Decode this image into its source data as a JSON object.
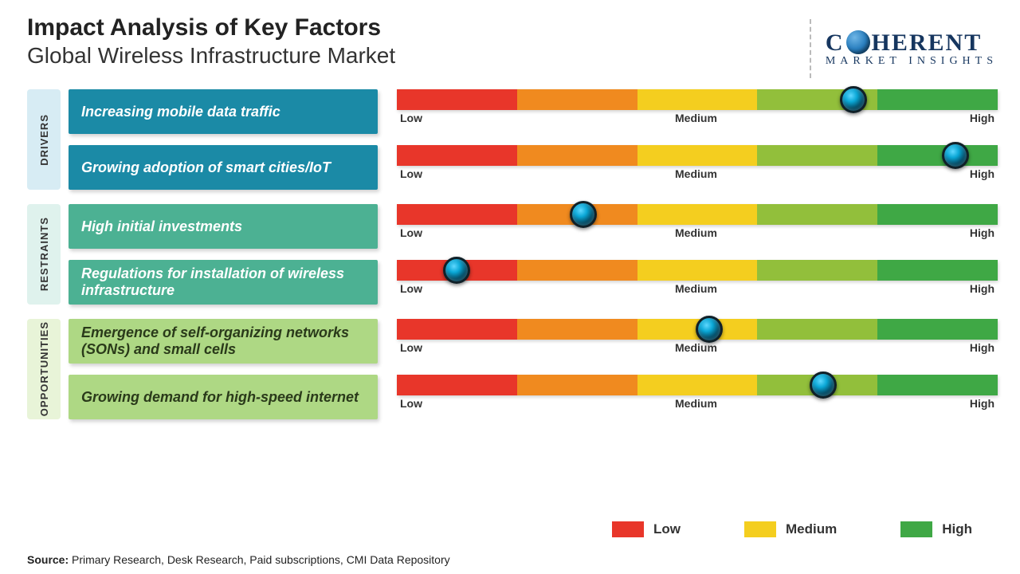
{
  "header": {
    "title": "Impact Analysis of Key Factors",
    "subtitle": "Global Wireless Infrastructure Market"
  },
  "logo": {
    "line1_pre": "C",
    "line1_post": "HERENT",
    "line2": "MARKET INSIGHTS",
    "text_color": "#16365f"
  },
  "gauge": {
    "segment_colors": [
      "#e8362a",
      "#f08a1f",
      "#f4ce1f",
      "#92bf3b",
      "#3fa845"
    ],
    "labels": {
      "low": "Low",
      "medium": "Medium",
      "high": "High"
    },
    "label_fontsize": 14
  },
  "groups": [
    {
      "id": "drivers",
      "tab_label": "DRIVERS",
      "tab_bg": "#d7ecf4",
      "card_bg": "#1b8aa6",
      "card_text": "#ffffff",
      "factors": [
        {
          "label": "Increasing mobile data traffic",
          "value_pct": 76
        },
        {
          "label": "Growing adoption of smart cities/IoT",
          "value_pct": 93
        }
      ]
    },
    {
      "id": "restraints",
      "tab_label": "RESTRAINTS",
      "tab_bg": "#dff2ed",
      "card_bg": "#4cb193",
      "card_text": "#ffffff",
      "factors": [
        {
          "label": "High initial investments",
          "value_pct": 31
        },
        {
          "label": "Regulations for installation of wireless infrastructure",
          "value_pct": 10
        }
      ]
    },
    {
      "id": "opportunities",
      "tab_label": "OPPORTUNITIES",
      "tab_bg": "#e8f4d8",
      "card_bg": "#aed884",
      "card_text": "#2a3a1a",
      "factors": [
        {
          "label": "Emergence of self-organizing networks (SONs) and small cells",
          "value_pct": 52
        },
        {
          "label": "Growing demand for high-speed internet",
          "value_pct": 71
        }
      ]
    }
  ],
  "legend": {
    "items": [
      {
        "label": "Low",
        "color": "#e8362a"
      },
      {
        "label": "Medium",
        "color": "#f4ce1f"
      },
      {
        "label": "High",
        "color": "#3fa845"
      }
    ]
  },
  "source": {
    "prefix": "Source:",
    "text": "Primary Research, Desk Research, Paid subscriptions, CMI Data Repository"
  }
}
